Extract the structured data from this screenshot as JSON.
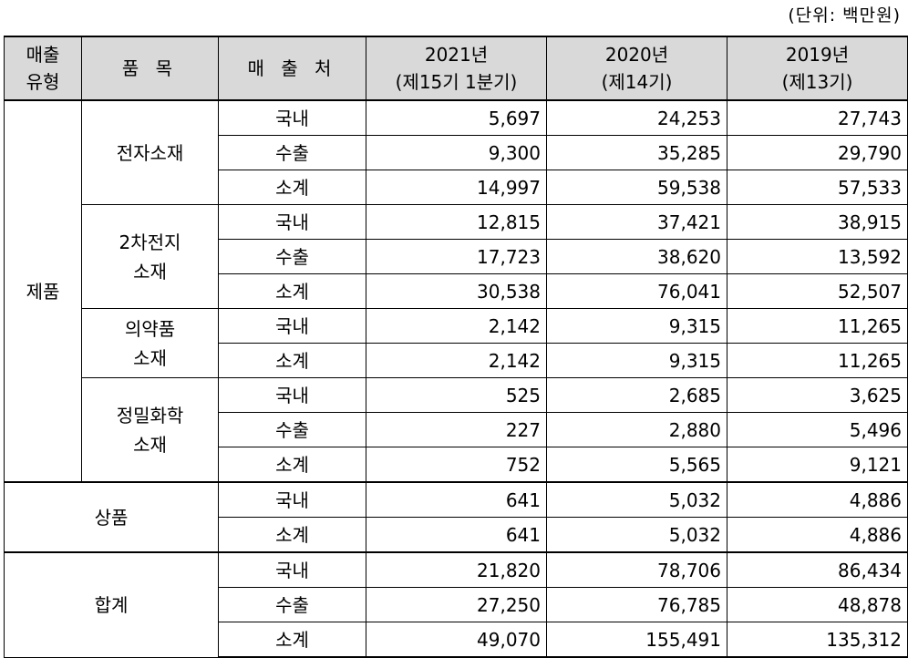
{
  "unit_label": "(단위: 백만원)",
  "headers": {
    "type_line1": "매출",
    "type_line2": "유형",
    "item": "품 목",
    "dest": "매 출 처",
    "y2021_line1": "2021년",
    "y2021_line2": "(제15기 1분기)",
    "y2020_line1": "2020년",
    "y2020_line2": "(제14기)",
    "y2019_line1": "2019년",
    "y2019_line2": "(제13기)"
  },
  "groups": {
    "product": "제품",
    "goods": "상품",
    "total": "합계"
  },
  "items": {
    "electronic": "전자소재",
    "battery_line1": "2차전지",
    "battery_line2": "소재",
    "pharma_line1": "의약품",
    "pharma_line2": "소재",
    "fine_line1": "정밀화학",
    "fine_line2": "소재"
  },
  "rows": [
    {
      "dest": "국내",
      "v2021": "5,697",
      "v2020": "24,253",
      "v2019": "27,743"
    },
    {
      "dest": "수출",
      "v2021": "9,300",
      "v2020": "35,285",
      "v2019": "29,790"
    },
    {
      "dest": "소계",
      "v2021": "14,997",
      "v2020": "59,538",
      "v2019": "57,533"
    },
    {
      "dest": "국내",
      "v2021": "12,815",
      "v2020": "37,421",
      "v2019": "38,915"
    },
    {
      "dest": "수출",
      "v2021": "17,723",
      "v2020": "38,620",
      "v2019": "13,592"
    },
    {
      "dest": "소계",
      "v2021": "30,538",
      "v2020": "76,041",
      "v2019": "52,507"
    },
    {
      "dest": "국내",
      "v2021": "2,142",
      "v2020": "9,315",
      "v2019": "11,265"
    },
    {
      "dest": "소계",
      "v2021": "2,142",
      "v2020": "9,315",
      "v2019": "11,265"
    },
    {
      "dest": "국내",
      "v2021": "525",
      "v2020": "2,685",
      "v2019": "3,625"
    },
    {
      "dest": "수출",
      "v2021": "227",
      "v2020": "2,880",
      "v2019": "5,496"
    },
    {
      "dest": "소계",
      "v2021": "752",
      "v2020": "5,565",
      "v2019": "9,121"
    },
    {
      "dest": "국내",
      "v2021": "641",
      "v2020": "5,032",
      "v2019": "4,886"
    },
    {
      "dest": "소계",
      "v2021": "641",
      "v2020": "5,032",
      "v2019": "4,886"
    },
    {
      "dest": "국내",
      "v2021": "21,820",
      "v2020": "78,706",
      "v2019": "86,434"
    },
    {
      "dest": "수출",
      "v2021": "27,250",
      "v2020": "76,785",
      "v2019": "48,878"
    },
    {
      "dest": "소계",
      "v2021": "49,070",
      "v2020": "155,491",
      "v2019": "135,312"
    }
  ]
}
